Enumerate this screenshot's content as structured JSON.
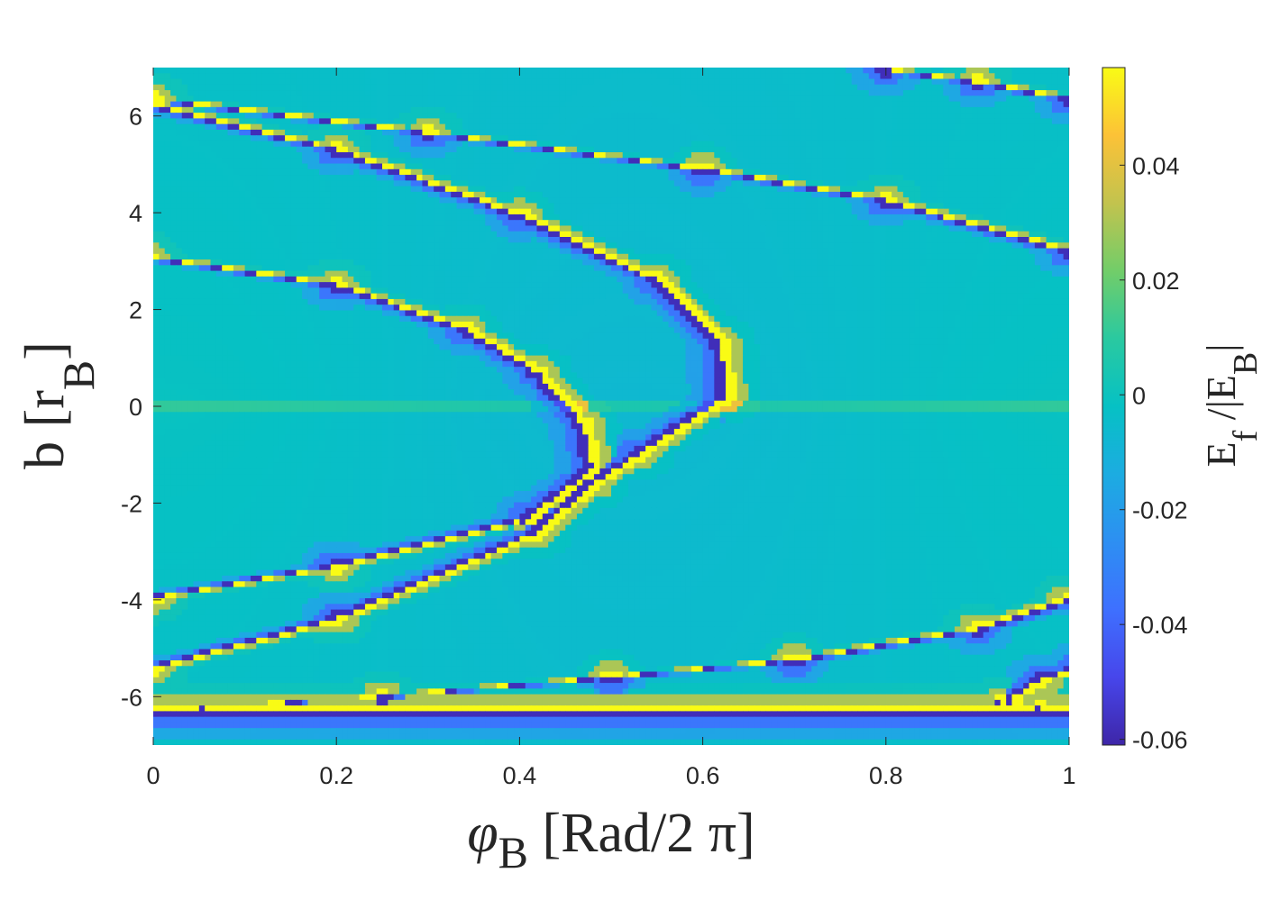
{
  "chart_data": {
    "type": "heatmap",
    "title": "",
    "xlabel": {
      "symbol": "φ",
      "sub": "B",
      "unit": " [Rad/2 π]"
    },
    "ylabel": {
      "base": "b [r",
      "sub": "B",
      "close": "]"
    },
    "colorbar_label": {
      "a": "E",
      "a_sub": "f",
      "b": " /|E",
      "b_sub": "B",
      "c": "|"
    },
    "xlim": [
      0,
      1
    ],
    "ylim": [
      -7,
      7
    ],
    "clim": [
      -0.061,
      0.057
    ],
    "colormap": "parula",
    "x_ticks": [
      {
        "v": 0,
        "label": "0"
      },
      {
        "v": 0.2,
        "label": "0.2"
      },
      {
        "v": 0.4,
        "label": "0.4"
      },
      {
        "v": 0.6,
        "label": "0.6"
      },
      {
        "v": 0.8,
        "label": "0.8"
      },
      {
        "v": 1,
        "label": "1"
      }
    ],
    "y_ticks": [
      {
        "v": 6,
        "label": "6"
      },
      {
        "v": 4,
        "label": "4"
      },
      {
        "v": 2,
        "label": "2"
      },
      {
        "v": 0,
        "label": "0"
      },
      {
        "v": -2,
        "label": "-2"
      },
      {
        "v": -4,
        "label": "-4"
      },
      {
        "v": -6,
        "label": "-6"
      }
    ],
    "colorbar_ticks": [
      {
        "v": 0.04,
        "label": "0.04"
      },
      {
        "v": 0.02,
        "label": "0.02"
      },
      {
        "v": 0,
        "label": "0"
      },
      {
        "v": -0.02,
        "label": "-0.02"
      },
      {
        "v": -0.04,
        "label": "-0.04"
      },
      {
        "v": -0.06,
        "label": "-0.06"
      }
    ],
    "background_value": -0.004,
    "ridges": [
      {
        "name": "inner-parabola",
        "axis": "x-of-y",
        "points": [
          [
            -0.01,
            3.1
          ],
          [
            0.2,
            2.5
          ],
          [
            0.34,
            1.6
          ],
          [
            0.42,
            0.7
          ],
          [
            0.47,
            -0.4
          ],
          [
            0.48,
            -1.3
          ],
          [
            0.41,
            -2.3
          ],
          [
            0.2,
            -3.3
          ],
          [
            0.0,
            -3.95
          ]
        ]
      },
      {
        "name": "outer-parabola",
        "axis": "x-of-y",
        "points": [
          [
            0.0,
            6.2
          ],
          [
            0.2,
            5.3
          ],
          [
            0.4,
            3.95
          ],
          [
            0.55,
            2.6
          ],
          [
            0.62,
            1.3
          ],
          [
            0.625,
            0.2
          ],
          [
            0.53,
            -1.0
          ],
          [
            0.48,
            -1.6
          ],
          [
            0.42,
            -2.6
          ],
          [
            0.2,
            -4.4
          ],
          [
            0.0,
            -5.4
          ]
        ]
      },
      {
        "name": "upper-diagonal",
        "axis": "y-of-x",
        "points": [
          [
            0,
            6.35
          ],
          [
            0.3,
            5.65
          ],
          [
            0.6,
            4.9
          ],
          [
            0.8,
            4.25
          ],
          [
            1.0,
            3.2
          ]
        ]
      },
      {
        "name": "top-right-band",
        "axis": "y-of-x",
        "points": [
          [
            0.72,
            7.1
          ],
          [
            0.8,
            6.95
          ],
          [
            0.9,
            6.7
          ],
          [
            1.0,
            6.35
          ]
        ]
      },
      {
        "name": "lower-diagonal",
        "axis": "y-of-x",
        "points": [
          [
            0.0,
            -6.3
          ],
          [
            0.25,
            -6.0
          ],
          [
            0.5,
            -5.6
          ],
          [
            0.7,
            -5.25
          ],
          [
            0.9,
            -4.6
          ],
          [
            1.0,
            -4.0
          ]
        ]
      },
      {
        "name": "bottom-right-loop",
        "axis": "x-of-y",
        "points": [
          [
            1.01,
            -5.4
          ],
          [
            0.97,
            -5.65
          ],
          [
            0.93,
            -6.1
          ],
          [
            0.97,
            -6.25
          ],
          [
            1.01,
            -6.3
          ]
        ]
      },
      {
        "name": "bottom-edge",
        "axis": "y-of-x",
        "points": [
          [
            0.0,
            -6.3
          ],
          [
            0.3,
            -6.3
          ],
          [
            0.6,
            -6.3
          ],
          [
            1.0,
            -6.3
          ]
        ]
      }
    ]
  }
}
